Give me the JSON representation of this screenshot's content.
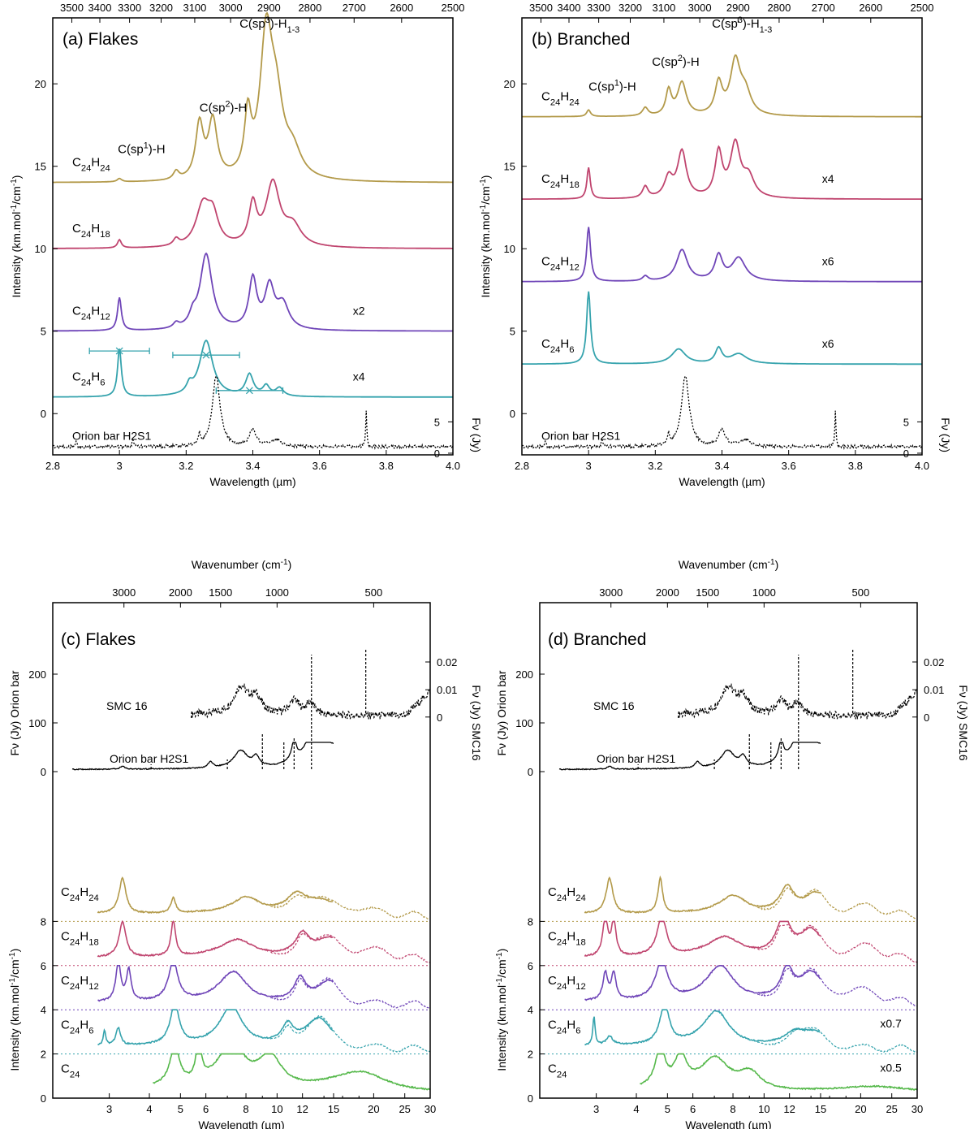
{
  "colors": {
    "C24H24": "#b39a4a",
    "C24H18": "#c0456f",
    "C24H12": "#6f45b8",
    "C24H6": "#35a3ad",
    "C24": "#55b84a",
    "obs": "#000000"
  },
  "chart_data": [
    {
      "id": "a",
      "type": "line",
      "title": "(a) Flakes",
      "xlabel": "Wavelength (µm)",
      "ylabel": "Intensity (km.mol-1/cm-1)",
      "x2label": "Wavenumber (cm-1)",
      "y2label": "Fν (Jy)",
      "xlim": [
        2.8,
        4.0
      ],
      "ylim": [
        -2.5,
        24
      ],
      "xticks": [
        "2.8",
        "3",
        "3.2",
        "3.4",
        "3.6",
        "3.8",
        "4.0"
      ],
      "xtick_values": [
        2.8,
        3.0,
        3.2,
        3.4,
        3.6,
        3.8,
        4.0
      ],
      "yticks": [
        "0",
        "5",
        "10",
        "15",
        "20"
      ],
      "ytick_values": [
        0,
        5,
        10,
        15,
        20
      ],
      "x2ticks": [
        "3500",
        "3400",
        "3300",
        "3200",
        "3100",
        "3000",
        "2900",
        "2800",
        "2700",
        "2600",
        "2500"
      ],
      "y2ticks": [
        "0",
        "5"
      ],
      "annotations": [
        "C(sp1)-H",
        "C(sp2)-H",
        "C(sp3)-H1-3"
      ],
      "series": [
        {
          "name": "C24H24",
          "offset": 14,
          "scale": "",
          "peaks": [
            [
              3.0,
              0.2,
              0.008
            ],
            [
              3.17,
              0.5,
              0.01
            ],
            [
              3.24,
              3.3,
              0.014
            ],
            [
              3.28,
              3.5,
              0.016
            ],
            [
              3.385,
              3.5,
              0.012
            ],
            [
              3.44,
              8.2,
              0.022
            ],
            [
              3.47,
              4.0,
              0.025
            ],
            [
              3.52,
              1.5,
              0.03
            ]
          ]
        },
        {
          "name": "C24H18",
          "offset": 10,
          "scale": "",
          "peaks": [
            [
              3.0,
              0.5,
              0.007
            ],
            [
              3.17,
              0.4,
              0.01
            ],
            [
              3.25,
              2.4,
              0.025
            ],
            [
              3.28,
              1.7,
              0.02
            ],
            [
              3.4,
              2.4,
              0.014
            ],
            [
              3.46,
              3.8,
              0.025
            ],
            [
              3.52,
              1.2,
              0.03
            ]
          ]
        },
        {
          "name": "C24H12",
          "offset": 5,
          "scale": "x2",
          "peaks": [
            [
              3.0,
              2.0,
              0.007
            ],
            [
              3.17,
              0.3,
              0.01
            ],
            [
              3.22,
              0.6,
              0.012
            ],
            [
              3.26,
              4.6,
              0.022
            ],
            [
              3.4,
              3.0,
              0.014
            ],
            [
              3.45,
              2.5,
              0.017
            ],
            [
              3.49,
              1.5,
              0.022
            ]
          ]
        },
        {
          "name": "C24H6",
          "offset": 1,
          "scale": "x4",
          "peaks": [
            [
              3.0,
              2.9,
              0.007
            ],
            [
              3.21,
              0.5,
              0.01
            ],
            [
              3.26,
              3.4,
              0.024
            ],
            [
              3.39,
              1.3,
              0.014
            ],
            [
              3.44,
              0.6,
              0.012
            ],
            [
              3.48,
              0.5,
              0.014
            ]
          ]
        }
      ],
      "error_markers": [
        [
          3.0,
          3.8,
          2.91,
          3.09
        ],
        [
          3.26,
          3.55,
          3.16,
          3.36
        ],
        [
          3.39,
          1.4,
          3.29,
          3.49
        ]
      ],
      "observation": {
        "name": "Orion bar H2S1",
        "peaks": [
          [
            3.29,
            4.3,
            0.014
          ],
          [
            3.4,
            1.0,
            0.012
          ],
          [
            3.47,
            0.4,
            0.02
          ],
          [
            3.74,
            2.2,
            0.002
          ],
          [
            3.24,
            0.7,
            0.003
          ],
          [
            3.04,
            0.5,
            0.002
          ],
          [
            2.87,
            0.4,
            0.002
          ]
        ]
      }
    },
    {
      "id": "b",
      "type": "line",
      "title": "(b) Branched",
      "xlabel": "Wavelength (µm)",
      "ylabel": "Intensity (km.mol-1/cm-1)",
      "x2label": "Wavenumber (cm-1)",
      "y2label": "Fν (Jy)",
      "xlim": [
        2.8,
        4.0
      ],
      "ylim": [
        -2.5,
        24
      ],
      "xticks": [
        "2.8",
        "3",
        "3.2",
        "3.4",
        "3.6",
        "3.8",
        "4.0"
      ],
      "xtick_values": [
        2.8,
        3.0,
        3.2,
        3.4,
        3.6,
        3.8,
        4.0
      ],
      "yticks": [
        "0",
        "5",
        "10",
        "15",
        "20"
      ],
      "ytick_values": [
        0,
        5,
        10,
        15,
        20
      ],
      "x2ticks": [
        "3500",
        "3400",
        "3300",
        "3200",
        "3100",
        "3000",
        "2900",
        "2800",
        "2700",
        "2600",
        "2500"
      ],
      "y2ticks": [
        "0",
        "5"
      ],
      "annotations": [
        "C(sp1)-H",
        "C(sp2)-H",
        "C(sp3)-H1-3"
      ],
      "series": [
        {
          "name": "C24H24",
          "offset": 18,
          "scale": "",
          "peaks": [
            [
              3.0,
              0.4,
              0.007
            ],
            [
              3.17,
              0.5,
              0.01
            ],
            [
              3.24,
              1.5,
              0.01
            ],
            [
              3.28,
              2.0,
              0.016
            ],
            [
              3.39,
              1.9,
              0.013
            ],
            [
              3.44,
              3.2,
              0.018
            ],
            [
              3.47,
              1.3,
              0.02
            ]
          ]
        },
        {
          "name": "C24H18",
          "offset": 13,
          "scale": "x4",
          "peaks": [
            [
              3.0,
              1.9,
              0.006
            ],
            [
              3.17,
              0.7,
              0.01
            ],
            [
              3.24,
              1.2,
              0.015
            ],
            [
              3.28,
              2.8,
              0.016
            ],
            [
              3.39,
              2.7,
              0.013
            ],
            [
              3.44,
              3.2,
              0.018
            ],
            [
              3.48,
              1.2,
              0.02
            ]
          ]
        },
        {
          "name": "C24H12",
          "offset": 8,
          "scale": "x6",
          "peaks": [
            [
              3.0,
              3.3,
              0.007
            ],
            [
              3.17,
              0.3,
              0.01
            ],
            [
              3.28,
              1.9,
              0.02
            ],
            [
              3.39,
              1.5,
              0.014
            ],
            [
              3.45,
              1.4,
              0.025
            ]
          ]
        },
        {
          "name": "C24H6",
          "offset": 3,
          "scale": "x6",
          "peaks": [
            [
              3.0,
              4.4,
              0.007
            ],
            [
              3.27,
              0.9,
              0.025
            ],
            [
              3.39,
              0.9,
              0.012
            ],
            [
              3.45,
              0.6,
              0.03
            ]
          ]
        }
      ],
      "observation": {
        "name": "Orion bar H2S1",
        "peaks": [
          [
            3.29,
            4.3,
            0.014
          ],
          [
            3.4,
            1.0,
            0.012
          ],
          [
            3.47,
            0.4,
            0.02
          ],
          [
            3.74,
            2.2,
            0.002
          ],
          [
            3.24,
            0.7,
            0.003
          ],
          [
            3.04,
            0.5,
            0.002
          ],
          [
            2.87,
            0.4,
            0.002
          ]
        ]
      }
    },
    {
      "id": "c",
      "type": "line",
      "title": "(c) Flakes",
      "xlabel": "Wavelength (µm)",
      "ylabel": "Intensity (km.mol-1/cm-1)",
      "ylabel_upper": "Fν (Jy) Orion bar",
      "x2label": "Wavenumber (cm-1)",
      "y2label": "Fν (Jy) SMC16",
      "xlim": [
        2,
        30
      ],
      "xticks": [
        "3",
        "4",
        "5",
        "6",
        "8",
        "10",
        "12",
        "15",
        "20",
        "25",
        "30"
      ],
      "xtick_values": [
        3,
        4,
        5,
        6,
        8,
        10,
        12,
        15,
        20,
        25,
        30
      ],
      "yticks_lower": [
        "0",
        "2",
        "4",
        "6",
        "8"
      ],
      "ytick_values_lower": [
        0,
        2,
        4,
        6,
        8
      ],
      "yticks_upper": [
        "0",
        "100",
        "200"
      ],
      "ytick_values_upper": [
        0,
        100,
        200
      ],
      "x2ticks": [
        "3000",
        "2000",
        "1500",
        "1000",
        "500"
      ],
      "x2tick_values": [
        3000,
        2000,
        1500,
        1000,
        500
      ],
      "y2ticks": [
        "0",
        "0.01",
        "0.02"
      ],
      "y2tick_values": [
        0,
        0.01,
        0.02
      ],
      "observations": [
        "SMC 16",
        "Orion bar H2S1"
      ],
      "series": [
        {
          "name": "C24H24",
          "offset": 8,
          "scale": "",
          "peaks": [
            [
              3.3,
              1.6,
              0.03
            ],
            [
              4.75,
              0.7,
              0.02
            ],
            [
              8.0,
              0.7,
              0.12
            ],
            [
              11.5,
              0.7,
              0.08
            ],
            [
              13.5,
              0.5,
              0.15
            ],
            [
              17.5,
              0.3,
              0.2
            ]
          ]
        },
        {
          "name": "C24H18",
          "offset": 6,
          "scale": "",
          "peaks": [
            [
              3.3,
              1.6,
              0.03
            ],
            [
              4.75,
              1.6,
              0.02
            ],
            [
              7.5,
              0.8,
              0.15
            ],
            [
              12.0,
              0.9,
              0.06
            ],
            [
              14.5,
              0.8,
              0.12
            ],
            [
              20.0,
              0.4,
              0.2
            ]
          ]
        },
        {
          "name": "C24H12",
          "offset": 4,
          "scale": "",
          "peaks": [
            [
              3.2,
              1.8,
              0.02
            ],
            [
              3.45,
              1.4,
              0.02
            ],
            [
              4.75,
              1.8,
              0.04
            ],
            [
              7.3,
              1.4,
              0.12
            ],
            [
              11.8,
              1.0,
              0.05
            ],
            [
              14.5,
              1.0,
              0.1
            ]
          ]
        },
        {
          "name": "C24H6",
          "offset": 2,
          "scale": "",
          "peaks": [
            [
              2.9,
              0.7,
              0.01
            ],
            [
              3.2,
              0.8,
              0.02
            ],
            [
              4.8,
              1.8,
              0.04
            ],
            [
              7.2,
              1.8,
              0.1
            ],
            [
              10.8,
              0.8,
              0.05
            ],
            [
              13.5,
              1.3,
              0.12
            ]
          ]
        },
        {
          "name": "C24",
          "offset": 0,
          "scale": "",
          "peaks": [
            [
              4.8,
              1.8,
              0.04
            ],
            [
              5.7,
              2.0,
              0.02
            ],
            [
              7.2,
              1.9,
              0.12
            ],
            [
              9.5,
              1.4,
              0.1
            ],
            [
              18.0,
              0.9,
              0.25
            ]
          ]
        }
      ]
    },
    {
      "id": "d",
      "type": "line",
      "title": "(d) Branched",
      "xlabel": "Wavelength (µm)",
      "ylabel": "Intensity (km.mol-1/cm-1)",
      "ylabel_upper": "Fν (Jy) Orion bar",
      "x2label": "Wavenumber (cm-1)",
      "y2label": "Fν (Jy) SMC16",
      "xlim": [
        2,
        30
      ],
      "xticks": [
        "3",
        "4",
        "5",
        "6",
        "8",
        "10",
        "12",
        "15",
        "20",
        "25",
        "30"
      ],
      "xtick_values": [
        3,
        4,
        5,
        6,
        8,
        10,
        12,
        15,
        20,
        25,
        30
      ],
      "yticks_lower": [
        "0",
        "2",
        "4",
        "6",
        "8"
      ],
      "ytick_values_lower": [
        0,
        2,
        4,
        6,
        8
      ],
      "yticks_upper": [
        "0",
        "100",
        "200"
      ],
      "ytick_values_upper": [
        0,
        100,
        200
      ],
      "x2ticks": [
        "3000",
        "2000",
        "1500",
        "1000",
        "500"
      ],
      "x2tick_values": [
        3000,
        2000,
        1500,
        1000,
        500
      ],
      "y2ticks": [
        "0",
        "0.01",
        "0.02"
      ],
      "y2tick_values": [
        0,
        0.01,
        0.02
      ],
      "observations": [
        "SMC 16",
        "Orion bar H2S1"
      ],
      "series": [
        {
          "name": "C24H24",
          "offset": 8,
          "scale": "",
          "peaks": [
            [
              3.3,
              1.6,
              0.03
            ],
            [
              4.75,
              1.6,
              0.02
            ],
            [
              8.0,
              0.8,
              0.12
            ],
            [
              11.8,
              1.1,
              0.06
            ],
            [
              14.5,
              0.9,
              0.1
            ],
            [
              21.0,
              0.4,
              0.15
            ]
          ]
        },
        {
          "name": "C24H18",
          "offset": 6,
          "scale": "",
          "peaks": [
            [
              3.2,
              1.8,
              0.02
            ],
            [
              3.4,
              1.6,
              0.02
            ],
            [
              4.8,
              1.8,
              0.04
            ],
            [
              7.5,
              0.9,
              0.15
            ],
            [
              11.5,
              1.6,
              0.06
            ],
            [
              14.0,
              1.2,
              0.1
            ],
            [
              21.0,
              0.6,
              0.15
            ]
          ]
        },
        {
          "name": "C24H12",
          "offset": 4,
          "scale": "",
          "peaks": [
            [
              3.2,
              1.2,
              0.02
            ],
            [
              3.4,
              1.2,
              0.02
            ],
            [
              4.8,
              1.8,
              0.05
            ],
            [
              7.3,
              1.6,
              0.12
            ],
            [
              11.8,
              1.3,
              0.05
            ],
            [
              14.0,
              1.2,
              0.1
            ],
            [
              20.0,
              0.6,
              0.2
            ]
          ]
        },
        {
          "name": "C24H6",
          "offset": 2,
          "scale": "x0.7",
          "peaks": [
            [
              2.95,
              1.3,
              0.01
            ],
            [
              3.3,
              0.4,
              0.03
            ],
            [
              4.9,
              1.8,
              0.04
            ],
            [
              7.1,
              1.6,
              0.12
            ],
            [
              12.5,
              0.6,
              0.1
            ],
            [
              14.5,
              0.6,
              0.1
            ]
          ]
        },
        {
          "name": "C24",
          "offset": 0,
          "scale": "x0.5",
          "peaks": [
            [
              4.75,
              1.8,
              0.04
            ],
            [
              5.5,
              1.4,
              0.05
            ],
            [
              7.0,
              1.4,
              0.12
            ],
            [
              9.0,
              0.8,
              0.1
            ],
            [
              22.0,
              0.25,
              0.3
            ]
          ]
        }
      ]
    }
  ]
}
